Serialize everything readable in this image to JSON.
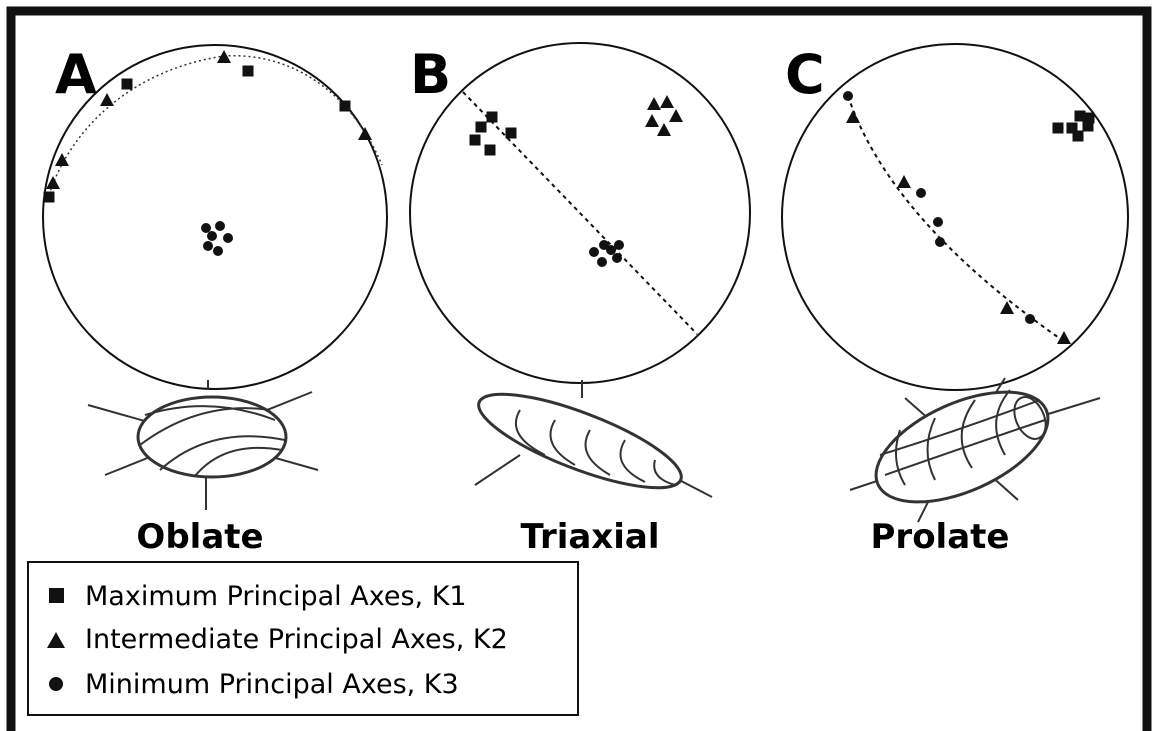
{
  "panels": [
    {
      "letter": "A",
      "label": "Oblate"
    },
    {
      "letter": "B",
      "label": "Triaxial"
    },
    {
      "letter": "C",
      "label": "Prolate"
    }
  ],
  "legend": {
    "items": [
      "Maximum Principal Axes, K1",
      "Intermediate Principal Axes, K2",
      "Minimum Principal Axes, K3"
    ]
  }
}
